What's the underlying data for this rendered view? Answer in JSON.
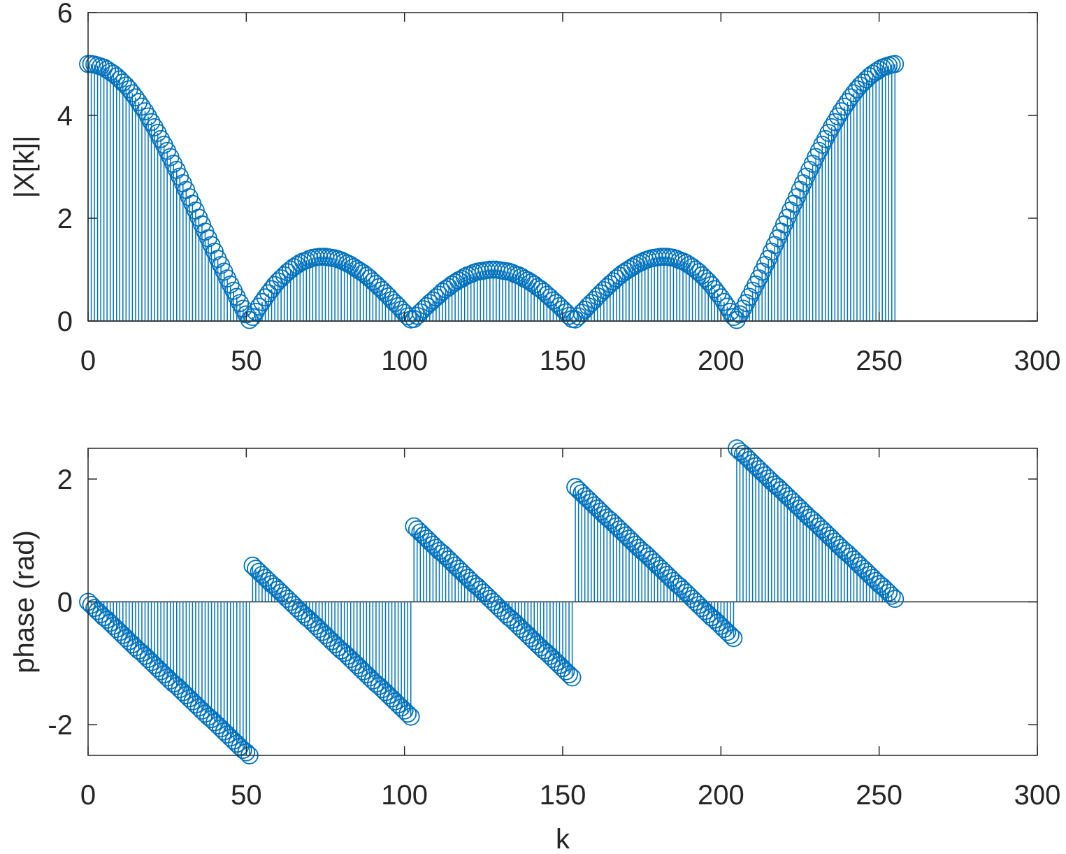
{
  "chart_data": [
    {
      "type": "stem",
      "color": "#0072bd",
      "x": [
        0,
        1,
        2,
        3,
        4,
        5,
        6,
        7,
        8,
        9,
        10,
        11,
        12,
        13,
        14,
        15,
        16,
        17,
        18,
        19,
        20,
        21,
        22,
        23,
        24,
        25,
        26,
        27,
        28,
        29,
        30,
        31,
        32,
        33,
        34,
        35,
        36,
        37,
        38,
        39,
        40,
        41,
        42,
        43,
        44,
        45,
        46,
        47,
        48,
        49,
        50,
        51,
        52,
        53,
        54,
        55,
        56,
        57,
        58,
        59,
        60,
        61,
        62,
        63,
        64,
        65,
        66,
        67,
        68,
        69,
        70,
        71,
        72,
        73,
        74,
        75,
        76,
        77,
        78,
        79,
        80,
        81,
        82,
        83,
        84,
        85,
        86,
        87,
        88,
        89,
        90,
        91,
        92,
        93,
        94,
        95,
        96,
        97,
        98,
        99,
        100,
        101,
        102,
        103,
        104,
        105,
        106,
        107,
        108,
        109,
        110,
        111,
        112,
        113,
        114,
        115,
        116,
        117,
        118,
        119,
        120,
        121,
        122,
        123,
        124,
        125,
        126,
        127,
        128,
        129,
        130,
        131,
        132,
        133,
        134,
        135,
        136,
        137,
        138,
        139,
        140,
        141,
        142,
        143,
        144,
        145,
        146,
        147,
        148,
        149,
        150,
        151,
        152,
        153,
        154,
        155,
        156,
        157,
        158,
        159,
        160,
        161,
        162,
        163,
        164,
        165,
        166,
        167,
        168,
        169,
        170,
        171,
        172,
        173,
        174,
        175,
        176,
        177,
        178,
        179,
        180,
        181,
        182,
        183,
        184,
        185,
        186,
        187,
        188,
        189,
        190,
        191,
        192,
        193,
        194,
        195,
        196,
        197,
        198,
        199,
        200,
        201,
        202,
        203,
        204,
        205,
        206,
        207,
        208,
        209,
        210,
        211,
        212,
        213,
        214,
        215,
        216,
        217,
        218,
        219,
        220,
        221,
        222,
        223,
        224,
        225,
        226,
        227,
        228,
        229,
        230,
        231,
        232,
        233,
        234,
        235,
        236,
        237,
        238,
        239,
        240,
        241,
        242,
        243,
        244,
        245,
        246,
        247,
        248,
        249,
        250,
        251,
        252,
        253,
        254,
        255
      ],
      "values": [
        5,
        5,
        4.99,
        4.97,
        4.95,
        4.93,
        4.89,
        4.85,
        4.81,
        4.76,
        4.7,
        4.64,
        4.58,
        4.51,
        4.43,
        4.35,
        4.26,
        4.17,
        4.08,
        3.98,
        3.87,
        3.77,
        3.66,
        3.54,
        3.43,
        3.31,
        3.19,
        3.06,
        2.94,
        2.81,
        2.68,
        2.55,
        2.41,
        2.28,
        2.15,
        2.01,
        1.88,
        1.74,
        1.61,
        1.48,
        1.35,
        1.21,
        1.09,
        0.96,
        0.83,
        0.71,
        0.59,
        0.47,
        0.35,
        0.24,
        0.13,
        0.02,
        0.08,
        0.18,
        0.28,
        0.37,
        0.46,
        0.54,
        0.62,
        0.7,
        0.77,
        0.83,
        0.89,
        0.95,
        1,
        1.05,
        1.09,
        1.13,
        1.16,
        1.18,
        1.21,
        1.23,
        1.24,
        1.25,
        1.25,
        1.25,
        1.24,
        1.23,
        1.22,
        1.2,
        1.18,
        1.15,
        1.12,
        1.09,
        1.05,
        1.01,
        0.97,
        0.93,
        0.88,
        0.83,
        0.77,
        0.72,
        0.66,
        0.6,
        0.54,
        0.48,
        0.41,
        0.35,
        0.29,
        0.22,
        0.16,
        0.09,
        0.03,
        0.04,
        0.1,
        0.17,
        0.23,
        0.29,
        0.35,
        0.4,
        0.46,
        0.51,
        0.57,
        0.62,
        0.66,
        0.71,
        0.75,
        0.79,
        0.82,
        0.86,
        0.89,
        0.91,
        0.94,
        0.96,
        0.97,
        0.98,
        0.99,
        1,
        1,
        1,
        0.99,
        0.98,
        0.97,
        0.96,
        0.94,
        0.91,
        0.89,
        0.86,
        0.82,
        0.79,
        0.75,
        0.71,
        0.66,
        0.62,
        0.57,
        0.51,
        0.46,
        0.4,
        0.35,
        0.29,
        0.23,
        0.17,
        0.1,
        0.04,
        0.03,
        0.09,
        0.16,
        0.22,
        0.29,
        0.35,
        0.41,
        0.48,
        0.54,
        0.6,
        0.66,
        0.72,
        0.77,
        0.83,
        0.88,
        0.93,
        0.97,
        1.01,
        1.05,
        1.09,
        1.12,
        1.15,
        1.18,
        1.2,
        1.22,
        1.23,
        1.24,
        1.25,
        1.25,
        1.25,
        1.24,
        1.23,
        1.21,
        1.18,
        1.16,
        1.13,
        1.09,
        1.05,
        1,
        0.95,
        0.89,
        0.83,
        0.77,
        0.7,
        0.62,
        0.54,
        0.46,
        0.37,
        0.28,
        0.18,
        0.08,
        0.02,
        0.13,
        0.24,
        0.35,
        0.47,
        0.59,
        0.71,
        0.83,
        0.96,
        1.09,
        1.21,
        1.35,
        1.48,
        1.61,
        1.74,
        1.88,
        2.01,
        2.15,
        2.28,
        2.41,
        2.55,
        2.68,
        2.81,
        2.94,
        3.06,
        3.19,
        3.31,
        3.43,
        3.54,
        3.66,
        3.77,
        3.87,
        3.98,
        4.08,
        4.17,
        4.26,
        4.35,
        4.43,
        4.51,
        4.58,
        4.64,
        4.7,
        4.76,
        4.81,
        4.85,
        4.89,
        4.93,
        4.95,
        4.97,
        4.99,
        5
      ],
      "xlim": [
        0,
        300
      ],
      "ylim": [
        0,
        6
      ],
      "xticks": [
        0,
        50,
        100,
        150,
        200,
        250,
        300
      ],
      "yticks": [
        0,
        2,
        4,
        6
      ],
      "ylabel": "|X[k]|"
    },
    {
      "type": "stem",
      "color": "#0072bd",
      "x": [
        0,
        1,
        2,
        3,
        4,
        5,
        6,
        7,
        8,
        9,
        10,
        11,
        12,
        13,
        14,
        15,
        16,
        17,
        18,
        19,
        20,
        21,
        22,
        23,
        24,
        25,
        26,
        27,
        28,
        29,
        30,
        31,
        32,
        33,
        34,
        35,
        36,
        37,
        38,
        39,
        40,
        41,
        42,
        43,
        44,
        45,
        46,
        47,
        48,
        49,
        50,
        51,
        52,
        53,
        54,
        55,
        56,
        57,
        58,
        59,
        60,
        61,
        62,
        63,
        64,
        65,
        66,
        67,
        68,
        69,
        70,
        71,
        72,
        73,
        74,
        75,
        76,
        77,
        78,
        79,
        80,
        81,
        82,
        83,
        84,
        85,
        86,
        87,
        88,
        89,
        90,
        91,
        92,
        93,
        94,
        95,
        96,
        97,
        98,
        99,
        100,
        101,
        102,
        103,
        104,
        105,
        106,
        107,
        108,
        109,
        110,
        111,
        112,
        113,
        114,
        115,
        116,
        117,
        118,
        119,
        120,
        121,
        122,
        123,
        124,
        125,
        126,
        127,
        128,
        129,
        130,
        131,
        132,
        133,
        134,
        135,
        136,
        137,
        138,
        139,
        140,
        141,
        142,
        143,
        144,
        145,
        146,
        147,
        148,
        149,
        150,
        151,
        152,
        153,
        154,
        155,
        156,
        157,
        158,
        159,
        160,
        161,
        162,
        163,
        164,
        165,
        166,
        167,
        168,
        169,
        170,
        171,
        172,
        173,
        174,
        175,
        176,
        177,
        178,
        179,
        180,
        181,
        182,
        183,
        184,
        185,
        186,
        187,
        188,
        189,
        190,
        191,
        192,
        193,
        194,
        195,
        196,
        197,
        198,
        199,
        200,
        201,
        202,
        203,
        204,
        205,
        206,
        207,
        208,
        209,
        210,
        211,
        212,
        213,
        214,
        215,
        216,
        217,
        218,
        219,
        220,
        221,
        222,
        223,
        224,
        225,
        226,
        227,
        228,
        229,
        230,
        231,
        232,
        233,
        234,
        235,
        236,
        237,
        238,
        239,
        240,
        241,
        242,
        243,
        244,
        245,
        246,
        247,
        248,
        249,
        250,
        251,
        252,
        253,
        254,
        255
      ],
      "values": [
        0,
        -0.05,
        -0.1,
        -0.15,
        -0.2,
        -0.25,
        -0.29,
        -0.34,
        -0.39,
        -0.44,
        -0.49,
        -0.54,
        -0.59,
        -0.64,
        -0.69,
        -0.74,
        -0.79,
        -0.83,
        -0.88,
        -0.93,
        -0.98,
        -1.03,
        -1.08,
        -1.13,
        -1.18,
        -1.23,
        -1.28,
        -1.33,
        -1.37,
        -1.42,
        -1.47,
        -1.52,
        -1.57,
        -1.62,
        -1.67,
        -1.72,
        -1.77,
        -1.82,
        -1.87,
        -1.91,
        -1.96,
        -2.01,
        -2.06,
        -2.11,
        -2.16,
        -2.21,
        -2.26,
        -2.31,
        -2.36,
        -2.41,
        -2.45,
        -2.5,
        0.59,
        0.54,
        0.49,
        0.44,
        0.39,
        0.34,
        0.29,
        0.25,
        0.2,
        0.15,
        0.1,
        0.05,
        0,
        -0.05,
        -0.1,
        -0.15,
        -0.2,
        -0.25,
        -0.29,
        -0.34,
        -0.39,
        -0.44,
        -0.49,
        -0.54,
        -0.59,
        -0.64,
        -0.69,
        -0.74,
        -0.79,
        -0.83,
        -0.88,
        -0.93,
        -0.98,
        -1.03,
        -1.08,
        -1.13,
        -1.18,
        -1.23,
        -1.28,
        -1.33,
        -1.37,
        -1.42,
        -1.47,
        -1.52,
        -1.57,
        -1.62,
        -1.67,
        -1.72,
        -1.77,
        -1.82,
        -1.87,
        1.23,
        1.18,
        1.13,
        1.08,
        1.03,
        0.98,
        0.93,
        0.88,
        0.83,
        0.79,
        0.74,
        0.69,
        0.64,
        0.59,
        0.54,
        0.49,
        0.44,
        0.39,
        0.34,
        0.29,
        0.25,
        0.2,
        0.15,
        0.1,
        0.05,
        0,
        -0.05,
        -0.1,
        -0.15,
        -0.2,
        -0.25,
        -0.29,
        -0.34,
        -0.39,
        -0.44,
        -0.49,
        -0.54,
        -0.59,
        -0.64,
        -0.69,
        -0.74,
        -0.79,
        -0.83,
        -0.88,
        -0.93,
        -0.98,
        -1.03,
        -1.08,
        -1.13,
        -1.18,
        -1.23,
        1.87,
        1.82,
        1.77,
        1.72,
        1.67,
        1.62,
        1.57,
        1.52,
        1.47,
        1.42,
        1.37,
        1.33,
        1.28,
        1.23,
        1.18,
        1.13,
        1.08,
        1.03,
        0.98,
        0.93,
        0.88,
        0.83,
        0.79,
        0.74,
        0.69,
        0.64,
        0.59,
        0.54,
        0.49,
        0.44,
        0.39,
        0.34,
        0.29,
        0.25,
        0.2,
        0.15,
        0.1,
        0.05,
        0,
        -0.05,
        -0.1,
        -0.15,
        -0.2,
        -0.25,
        -0.29,
        -0.34,
        -0.39,
        -0.44,
        -0.49,
        -0.54,
        -0.59,
        2.5,
        2.45,
        2.41,
        2.36,
        2.31,
        2.26,
        2.21,
        2.16,
        2.11,
        2.06,
        2.01,
        1.96,
        1.91,
        1.87,
        1.82,
        1.77,
        1.72,
        1.67,
        1.62,
        1.57,
        1.52,
        1.47,
        1.42,
        1.37,
        1.33,
        1.28,
        1.23,
        1.18,
        1.13,
        1.08,
        1.03,
        0.98,
        0.93,
        0.88,
        0.83,
        0.79,
        0.74,
        0.69,
        0.64,
        0.59,
        0.54,
        0.49,
        0.44,
        0.39,
        0.34,
        0.29,
        0.25,
        0.2,
        0.15,
        0.1,
        0.05
      ],
      "xlim": [
        0,
        300
      ],
      "ylim": [
        -2.5,
        2.5
      ],
      "xticks": [
        0,
        50,
        100,
        150,
        200,
        250,
        300
      ],
      "yticks": [
        -2,
        0,
        2
      ],
      "ylabel": "phase (rad)",
      "xlabel": "k"
    }
  ]
}
